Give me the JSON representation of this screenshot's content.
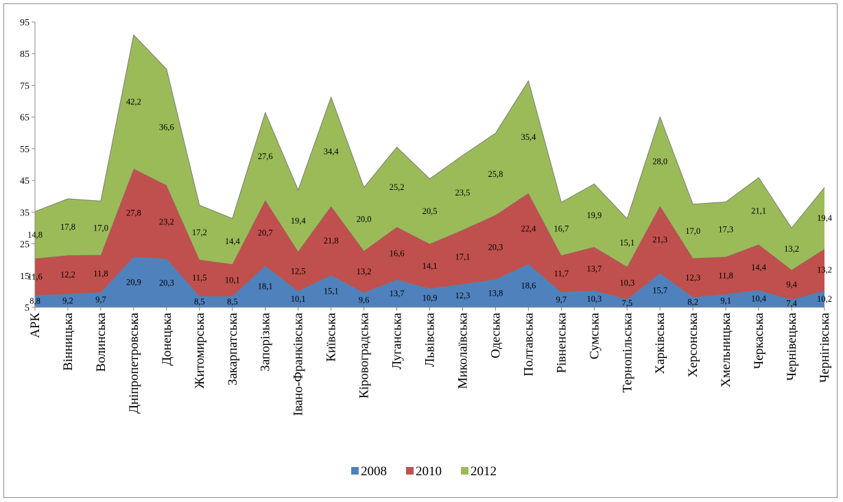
{
  "chart_data": {
    "type": "area",
    "stacked": true,
    "title": "",
    "xlabel": "",
    "ylabel": "",
    "ylim": [
      5,
      95
    ],
    "yticks": [
      "5",
      "15",
      "25",
      "35",
      "45",
      "55",
      "65",
      "75",
      "85",
      "95"
    ],
    "ytick_values": [
      5,
      15,
      25,
      35,
      45,
      55,
      65,
      75,
      85,
      95
    ],
    "grid": false,
    "legend_position": "bottom",
    "categories": [
      "АРК",
      "Вінницька",
      "Волинська",
      "Дніпропетровська",
      "Донецька",
      "Житомирська",
      "Закарпатська",
      "Запорізька",
      "Івано-Франківська",
      "Київська",
      "Кіровоградська",
      "Луганська",
      "Львівська",
      "Миколаївська",
      "Одеська",
      "Полтавська",
      "Рівненська",
      "Сумська",
      "Тернопільська",
      "Харківська",
      "Херсонська",
      "Хмельницька",
      "Черкаська",
      "Чернівецька",
      "Чернігівська"
    ],
    "series": [
      {
        "name": "2008",
        "color": "#4f81bd",
        "values": [
          8.8,
          9.2,
          9.7,
          20.9,
          20.3,
          8.5,
          8.5,
          18.1,
          10.1,
          15.1,
          9.6,
          13.7,
          10.9,
          12.3,
          13.8,
          18.6,
          9.7,
          10.3,
          7.5,
          15.7,
          8.2,
          9.1,
          10.4,
          7.4,
          10.2
        ],
        "labels": [
          "8,8",
          "9,2",
          "9,7",
          "20,9",
          "20,3",
          "8,5",
          "8,5",
          "18,1",
          "10,1",
          "15,1",
          "9,6",
          "13,7",
          "10,9",
          "12,3",
          "13,8",
          "18,6",
          "9,7",
          "10,3",
          "7,5",
          "15,7",
          "8,2",
          "9,1",
          "10,4",
          "7,4",
          "10,2"
        ]
      },
      {
        "name": "2010",
        "color": "#c0504d",
        "values": [
          11.6,
          12.2,
          11.8,
          27.8,
          23.2,
          11.5,
          10.1,
          20.7,
          12.5,
          21.8,
          13.2,
          16.6,
          14.1,
          17.1,
          20.3,
          22.4,
          11.7,
          13.7,
          10.3,
          21.3,
          12.3,
          11.8,
          14.4,
          9.4,
          13.2
        ],
        "labels": [
          "11,6",
          "12,2",
          "11,8",
          "27,8",
          "23,2",
          "11,5",
          "10,1",
          "20,7",
          "12,5",
          "21,8",
          "13,2",
          "16,6",
          "14,1",
          "17,1",
          "20,3",
          "22,4",
          "11,7",
          "13,7",
          "10,3",
          "21,3",
          "12,3",
          "11,8",
          "14,4",
          "9,4",
          "13,2"
        ]
      },
      {
        "name": "2012",
        "color": "#9bbb59",
        "values": [
          14.8,
          17.8,
          17.0,
          42.2,
          36.6,
          17.2,
          14.4,
          27.6,
          19.4,
          34.4,
          20.0,
          25.2,
          20.5,
          23.5,
          25.8,
          35.4,
          16.7,
          19.9,
          15.1,
          28.0,
          17.0,
          17.3,
          21.1,
          13.2,
          19.4
        ],
        "labels": [
          "14,8",
          "17,8",
          "17,0",
          "42,2",
          "36,6",
          "17,2",
          "14,4",
          "27,6",
          "19,4",
          "34,4",
          "20,0",
          "25,2",
          "20,5",
          "23,5",
          "25,8",
          "35,4",
          "16,7",
          "19,9",
          "15,1",
          "28,0",
          "17,0",
          "17,3",
          "21,1",
          "13,2",
          "19,4"
        ]
      }
    ]
  }
}
